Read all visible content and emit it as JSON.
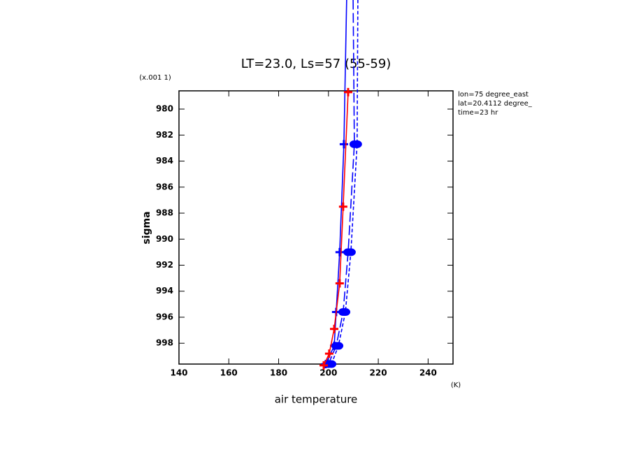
{
  "chart_data": {
    "type": "profile",
    "title": "LT=23.0, Ls=57 (55-59)",
    "y_unit": "(x.001 1)",
    "y_label": "sigma",
    "x_label": "air temperature",
    "x_unit": "(K)",
    "annotations": [
      "lon=75 degree_east",
      "lat=20.4112 degree_",
      "time=23 hr"
    ],
    "xlim": [
      140,
      250
    ],
    "xticks": [
      140,
      160,
      180,
      200,
      220,
      240
    ],
    "ylim": [
      978.6,
      999.6
    ],
    "y_inverted": true,
    "yticks": [
      980,
      982,
      984,
      986,
      988,
      990,
      992,
      994,
      996,
      998
    ],
    "series": [
      {
        "color": "#0000ff",
        "line_style": "solid",
        "marker": "plus",
        "temperature": [
          207.3,
          206.2,
          204.5,
          203.1,
          202.3,
          198.9
        ],
        "sigma": [
          971.6,
          982.7,
          991.0,
          995.6,
          998.2,
          999.6
        ]
      },
      {
        "color": "#0000ff",
        "line_style": "long-dash",
        "marker": "circle",
        "temperature": [
          209.9,
          210.4,
          207.9,
          205.9,
          203.1,
          200.0
        ],
        "sigma": [
          971.6,
          982.7,
          991.0,
          995.6,
          998.2,
          999.6
        ]
      },
      {
        "color": "#0000ff",
        "line_style": "dash",
        "marker": "circle",
        "temperature": [
          211.8,
          211.5,
          209.0,
          206.8,
          204.0,
          201.2
        ],
        "sigma": [
          971.6,
          982.7,
          991.0,
          995.6,
          998.2,
          999.6
        ]
      },
      {
        "color": "#ff0000",
        "line_style": "solid",
        "marker": "plus",
        "temperature": [
          207.9,
          205.9,
          204.5,
          202.3,
          200.3,
          198.1
        ],
        "sigma": [
          978.7,
          987.5,
          993.4,
          996.9,
          998.8,
          999.7
        ]
      }
    ]
  }
}
